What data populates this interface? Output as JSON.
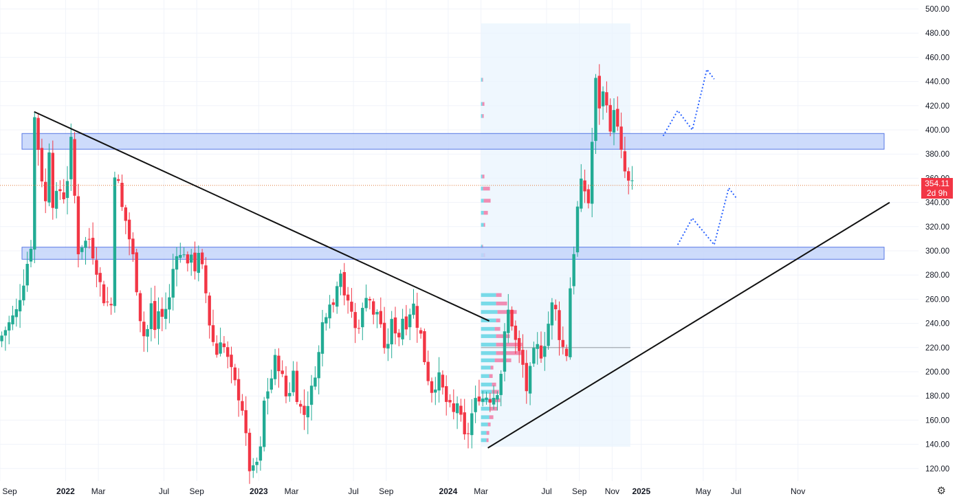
{
  "chart_data": {
    "type": "candlestick",
    "title": "",
    "xlabel": "",
    "ylabel": "",
    "ylim": [
      110,
      500
    ],
    "y_ticks": [
      120,
      140,
      160,
      180,
      200,
      220,
      240,
      260,
      280,
      300,
      320,
      340,
      360,
      380,
      400,
      420,
      440,
      460,
      480,
      500
    ],
    "x_ticks": [
      {
        "label": "Sep",
        "week": 0
      },
      {
        "label": "2022",
        "week": 18
      },
      {
        "label": "Mar",
        "week": 27
      },
      {
        "label": "Jul",
        "week": 45
      },
      {
        "label": "Sep",
        "week": 54
      },
      {
        "label": "2023",
        "week": 71
      },
      {
        "label": "Mar",
        "week": 80
      },
      {
        "label": "Jul",
        "week": 97
      },
      {
        "label": "Sep",
        "week": 106
      },
      {
        "label": "2024",
        "week": 123
      },
      {
        "label": "Mar",
        "week": 132
      },
      {
        "label": "Jul",
        "week": 150
      },
      {
        "label": "Sep",
        "week": 159
      },
      {
        "label": "Nov",
        "week": 168
      },
      {
        "label": "2025",
        "week": 176
      },
      {
        "label": "May",
        "week": 193
      },
      {
        "label": "Jul",
        "week": 202
      },
      {
        "label": "Nov",
        "week": 219
      }
    ],
    "current_price": {
      "value": "354.11",
      "countdown": "2d 9h"
    },
    "series": [
      {
        "type": "weekly-ohlc",
        "close_path": [
          [
            0,
            230
          ],
          [
            4,
            250
          ],
          [
            6,
            275
          ],
          [
            8,
            305
          ],
          [
            9,
            410
          ],
          [
            10,
            385
          ],
          [
            11,
            360
          ],
          [
            12,
            340
          ],
          [
            13,
            385
          ],
          [
            14,
            340
          ],
          [
            16,
            350
          ],
          [
            17,
            345
          ],
          [
            18,
            360
          ],
          [
            19,
            390
          ],
          [
            20,
            345
          ],
          [
            21,
            300
          ],
          [
            22,
            305
          ],
          [
            24,
            310
          ],
          [
            26,
            285
          ],
          [
            28,
            260
          ],
          [
            30,
            255
          ],
          [
            31,
            365
          ],
          [
            32,
            355
          ],
          [
            33,
            335
          ],
          [
            34,
            325
          ],
          [
            35,
            310
          ],
          [
            36,
            295
          ],
          [
            37,
            270
          ],
          [
            38,
            245
          ],
          [
            39,
            230
          ],
          [
            40,
            235
          ],
          [
            41,
            255
          ],
          [
            42,
            235
          ],
          [
            43,
            250
          ],
          [
            44,
            245
          ],
          [
            46,
            260
          ],
          [
            47,
            285
          ],
          [
            48,
            300
          ],
          [
            49,
            295
          ],
          [
            50,
            300
          ],
          [
            51,
            285
          ],
          [
            52,
            300
          ],
          [
            53,
            285
          ],
          [
            54,
            295
          ],
          [
            55,
            285
          ],
          [
            56,
            265
          ],
          [
            57,
            240
          ],
          [
            58,
            225
          ],
          [
            59,
            215
          ],
          [
            60,
            228
          ],
          [
            61,
            220
          ],
          [
            62,
            210
          ],
          [
            63,
            200
          ],
          [
            64,
            190
          ],
          [
            65,
            180
          ],
          [
            66,
            170
          ],
          [
            67,
            145
          ],
          [
            68,
            120
          ],
          [
            69,
            118
          ],
          [
            70,
            125
          ],
          [
            71,
            135
          ],
          [
            72,
            175
          ],
          [
            73,
            185
          ],
          [
            74,
            195
          ],
          [
            75,
            210
          ],
          [
            76,
            205
          ],
          [
            77,
            195
          ],
          [
            78,
            180
          ],
          [
            79,
            185
          ],
          [
            80,
            200
          ],
          [
            81,
            180
          ],
          [
            82,
            170
          ],
          [
            83,
            165
          ],
          [
            84,
            175
          ],
          [
            85,
            185
          ],
          [
            86,
            200
          ],
          [
            87,
            215
          ],
          [
            88,
            240
          ],
          [
            89,
            250
          ],
          [
            90,
            260
          ],
          [
            91,
            255
          ],
          [
            92,
            275
          ],
          [
            93,
            285
          ],
          [
            94,
            265
          ],
          [
            95,
            255
          ],
          [
            96,
            250
          ],
          [
            97,
            235
          ],
          [
            98,
            240
          ],
          [
            99,
            250
          ],
          [
            100,
            265
          ],
          [
            101,
            260
          ],
          [
            102,
            245
          ],
          [
            103,
            250
          ],
          [
            104,
            240
          ],
          [
            105,
            215
          ],
          [
            106,
            225
          ],
          [
            107,
            240
          ],
          [
            108,
            235
          ],
          [
            109,
            230
          ],
          [
            110,
            245
          ],
          [
            111,
            240
          ],
          [
            112,
            250
          ],
          [
            113,
            255
          ],
          [
            114,
            240
          ],
          [
            115,
            230
          ],
          [
            116,
            210
          ],
          [
            117,
            195
          ],
          [
            118,
            185
          ],
          [
            119,
            190
          ],
          [
            120,
            195
          ],
          [
            121,
            185
          ],
          [
            122,
            175
          ],
          [
            123,
            170
          ],
          [
            124,
            165
          ],
          [
            125,
            175
          ],
          [
            126,
            160
          ],
          [
            127,
            145
          ],
          [
            128,
            150
          ],
          [
            129,
            165
          ],
          [
            130,
            175
          ],
          [
            131,
            180
          ],
          [
            132,
            178
          ],
          [
            133,
            180
          ],
          [
            134,
            178
          ],
          [
            135,
            180
          ],
          [
            136,
            185
          ],
          [
            137,
            200
          ],
          [
            138,
            230
          ],
          [
            139,
            250
          ],
          [
            140,
            240
          ],
          [
            141,
            225
          ],
          [
            142,
            215
          ],
          [
            143,
            205
          ],
          [
            144,
            185
          ],
          [
            145,
            200
          ],
          [
            146,
            215
          ],
          [
            147,
            220
          ],
          [
            148,
            215
          ],
          [
            149,
            225
          ],
          [
            150,
            240
          ],
          [
            151,
            255
          ],
          [
            152,
            250
          ],
          [
            153,
            230
          ],
          [
            154,
            220
          ],
          [
            155,
            215
          ],
          [
            156,
            270
          ],
          [
            157,
            300
          ],
          [
            158,
            335
          ],
          [
            159,
            355
          ],
          [
            160,
            350
          ],
          [
            161,
            340
          ],
          [
            162,
            390
          ],
          [
            163,
            440
          ],
          [
            164,
            420
          ],
          [
            165,
            430
          ],
          [
            166,
            425
          ],
          [
            167,
            395
          ],
          [
            168,
            420
          ],
          [
            169,
            400
          ],
          [
            170,
            380
          ],
          [
            171,
            365
          ],
          [
            172,
            356
          ],
          [
            173,
            354
          ]
        ]
      }
    ],
    "annotations": {
      "resistance_zones": [
        {
          "low": 384,
          "high": 397
        },
        {
          "low": 293,
          "high": 303
        }
      ],
      "downtrend_line": [
        [
          9,
          415
        ],
        [
          132,
          242
        ]
      ],
      "uptrend_line": [
        [
          132,
          137
        ],
        [
          230,
          340
        ]
      ],
      "projection_paths": [
        [
          [
            182,
            395
          ],
          [
            186,
            416
          ],
          [
            190,
            400
          ],
          [
            194,
            450
          ],
          [
            196,
            442
          ]
        ],
        [
          [
            186,
            305
          ],
          [
            190,
            327
          ],
          [
            196,
            305
          ],
          [
            200,
            352
          ],
          [
            202,
            344
          ]
        ]
      ],
      "date_range_highlight": {
        "start_week": 132,
        "end_week": 173
      },
      "volume_profile_poc": 220
    },
    "colors": {
      "up": "#22ab94",
      "down": "#f23645",
      "zone_fill": "#c5d5fb",
      "zone_stroke": "#3a60e0",
      "projection": "#2962ff"
    }
  },
  "ui": {
    "settings_icon": "gear-icon"
  }
}
